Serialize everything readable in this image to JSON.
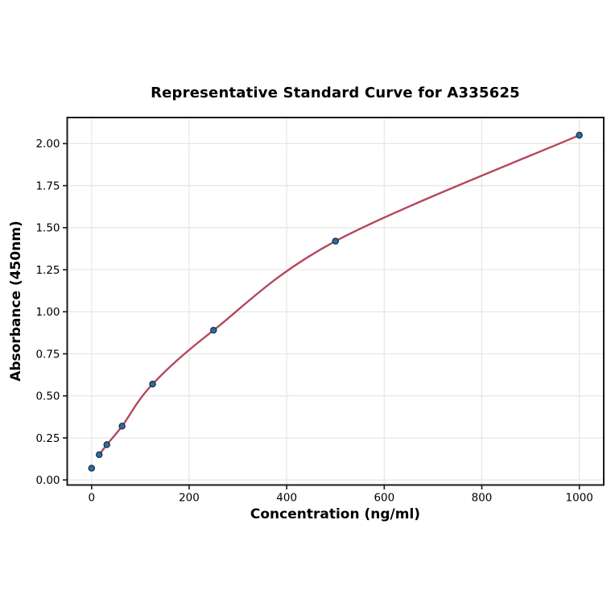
{
  "chart_data": {
    "type": "scatter",
    "title": "Representative Standard Curve for A335625",
    "xlabel": "Concentration (ng/ml)",
    "ylabel": "Absorbance (450nm)",
    "xlim": [
      -50,
      1050
    ],
    "ylim": [
      -0.03,
      2.155
    ],
    "x_ticks": [
      0,
      200,
      400,
      600,
      800,
      1000
    ],
    "y_ticks": [
      0.0,
      0.25,
      0.5,
      0.75,
      1.0,
      1.25,
      1.5,
      1.75,
      2.0
    ],
    "grid": true,
    "legend_position": "none",
    "points": [
      {
        "x": 0,
        "y": 0.07
      },
      {
        "x": 15.625,
        "y": 0.15
      },
      {
        "x": 31.25,
        "y": 0.21
      },
      {
        "x": 62.5,
        "y": 0.32
      },
      {
        "x": 125,
        "y": 0.57
      },
      {
        "x": 250,
        "y": 0.89
      },
      {
        "x": 500,
        "y": 1.42
      },
      {
        "x": 1000,
        "y": 2.05
      }
    ],
    "curve": {
      "x_start": 15.625,
      "x_end": 1000
    },
    "colors": {
      "curve": "#b5485d",
      "marker_fill": "#2d6d9f",
      "marker_edge": "#16334d",
      "grid": "#e6e6e6",
      "spine": "#1a1a1a",
      "text": "#000000"
    }
  }
}
